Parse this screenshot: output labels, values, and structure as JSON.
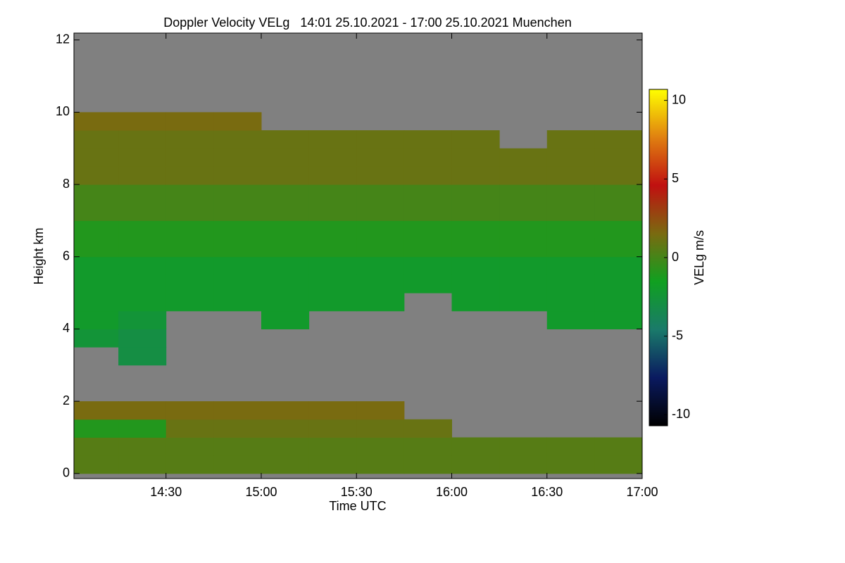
{
  "chart_data": {
    "type": "heatmap",
    "title": "Doppler Velocity VELg   14:01 25.10.2021 - 17:00 25.10.2021 Muenchen",
    "xlabel": "Time UTC",
    "ylabel": "Height km",
    "zlabel": "VELg m/s",
    "xlim": [
      841,
      1020
    ],
    "xticks": [
      {
        "value": 870,
        "label": "14:30"
      },
      {
        "value": 900,
        "label": "15:00"
      },
      {
        "value": 930,
        "label": "15:30"
      },
      {
        "value": 960,
        "label": "16:00"
      },
      {
        "value": 990,
        "label": "16:30"
      },
      {
        "value": 1020,
        "label": "17:00"
      }
    ],
    "ylim": [
      -0.14,
      12.19
    ],
    "yticks": [
      0,
      2,
      4,
      6,
      8,
      10,
      12
    ],
    "zlim": [
      -10.7,
      10.7
    ],
    "zticks": [
      -10,
      -5,
      0,
      5,
      10
    ],
    "colorscale": [
      "#000000",
      "#0a1a60",
      "#1a7a6a",
      "#10a020",
      "#7a6a10",
      "#c01010",
      "#e08010",
      "#ffff00"
    ],
    "background": "#808080",
    "xbins": [
      841,
      855,
      870,
      885,
      900,
      915,
      930,
      945,
      960,
      975,
      990,
      1005,
      1020
    ],
    "ybins": [
      0,
      0.5,
      1,
      1.5,
      2,
      2.5,
      3,
      3.5,
      4,
      4.5,
      5,
      5.5,
      6,
      6.5,
      7,
      7.5,
      8,
      8.5,
      9,
      9.5,
      10
    ],
    "values": [
      [
        0.5,
        0.5,
        0.5,
        0.5,
        0.5,
        0.5,
        0.5,
        0.5,
        0.5,
        0.5,
        0.5,
        0.5
      ],
      [
        0.5,
        0.5,
        0.5,
        0.5,
        0.5,
        0.5,
        0.5,
        0.5,
        0.5,
        0.5,
        0.5,
        0.5
      ],
      [
        -1,
        -1,
        1,
        1,
        1,
        1,
        1,
        1,
        null,
        null,
        null,
        null
      ],
      [
        1.5,
        1.5,
        1.5,
        1.5,
        1.5,
        1.5,
        1.5,
        null,
        null,
        null,
        null,
        null
      ],
      [
        null,
        null,
        null,
        null,
        null,
        null,
        null,
        null,
        null,
        null,
        null,
        null
      ],
      [
        null,
        null,
        null,
        null,
        null,
        null,
        null,
        null,
        null,
        null,
        null,
        null
      ],
      [
        null,
        -3,
        null,
        null,
        null,
        null,
        null,
        null,
        null,
        null,
        null,
        null
      ],
      [
        -2.5,
        -3,
        null,
        null,
        null,
        null,
        null,
        null,
        null,
        null,
        null,
        null
      ],
      [
        -2,
        -2.5,
        null,
        null,
        -2,
        null,
        null,
        null,
        null,
        null,
        -2,
        -2
      ],
      [
        -2,
        -2,
        -2,
        -2,
        -2,
        -2,
        -2,
        null,
        -2,
        -2,
        -2,
        -2
      ],
      [
        -2,
        -2,
        -2,
        -2,
        -2,
        -2,
        -2,
        -2,
        -2,
        -2,
        -2,
        -2
      ],
      [
        -2,
        -2,
        -2,
        -2,
        -2,
        -2,
        -2,
        -2,
        -2,
        -2,
        -2,
        -2
      ],
      [
        -1,
        -1,
        -1,
        -1,
        -1,
        -1,
        -1,
        -1,
        -1,
        -1,
        -1,
        -1
      ],
      [
        -1,
        -1,
        -1,
        -1,
        -1,
        -1,
        -1,
        -1,
        -1,
        -1,
        -1,
        -1
      ],
      [
        0,
        0,
        0,
        0,
        0,
        0,
        0,
        0,
        0,
        0,
        0,
        0
      ],
      [
        0,
        0,
        0,
        0,
        0,
        0,
        0,
        0,
        0,
        0,
        0,
        0
      ],
      [
        1,
        1,
        1,
        1,
        1,
        1,
        1,
        1,
        1,
        1,
        1,
        1
      ],
      [
        1,
        1,
        1,
        1,
        1,
        1,
        1,
        1,
        1,
        1,
        1,
        1
      ],
      [
        1,
        1,
        1,
        1,
        1,
        1,
        1,
        1,
        1,
        null,
        1,
        1
      ],
      [
        1.5,
        1.5,
        1.5,
        1.5,
        null,
        null,
        null,
        null,
        null,
        null,
        null,
        null
      ]
    ]
  }
}
